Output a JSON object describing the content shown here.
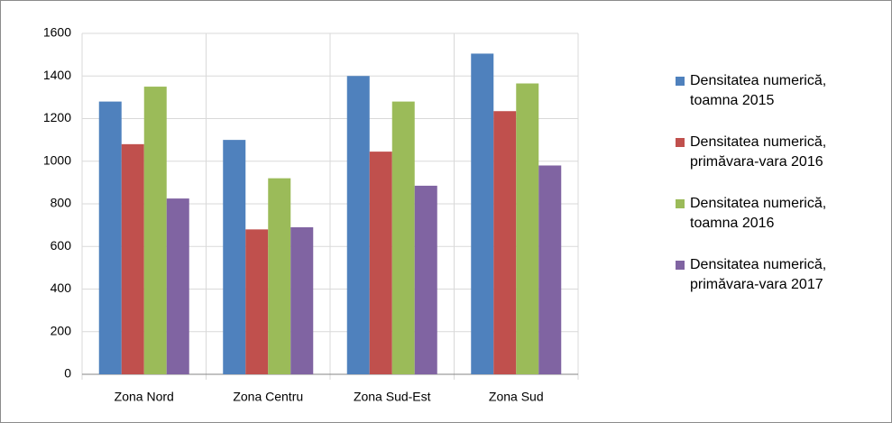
{
  "chart_data": {
    "type": "bar",
    "categories": [
      "Zona Nord",
      "Zona Centru",
      "Zona Sud-Est",
      "Zona Sud"
    ],
    "series": [
      {
        "name": "Densitatea numerică, toamna 2015",
        "color": "#4f81bd",
        "values": [
          1280,
          1100,
          1400,
          1505
        ]
      },
      {
        "name": "Densitatea numerică, primăvara-vara 2016",
        "color": "#c0504d",
        "values": [
          1080,
          680,
          1045,
          1235
        ]
      },
      {
        "name": "Densitatea numerică, toamna 2016",
        "color": "#9bbb59",
        "values": [
          1350,
          920,
          1280,
          1365
        ]
      },
      {
        "name": "Densitatea numerică, primăvara-vara 2017",
        "color": "#8064a2",
        "values": [
          825,
          690,
          885,
          980
        ]
      }
    ],
    "ylim": [
      0,
      1600
    ],
    "yticks": [
      0,
      200,
      400,
      600,
      800,
      1000,
      1200,
      1400,
      1600
    ],
    "grid": true,
    "legend": "right"
  }
}
